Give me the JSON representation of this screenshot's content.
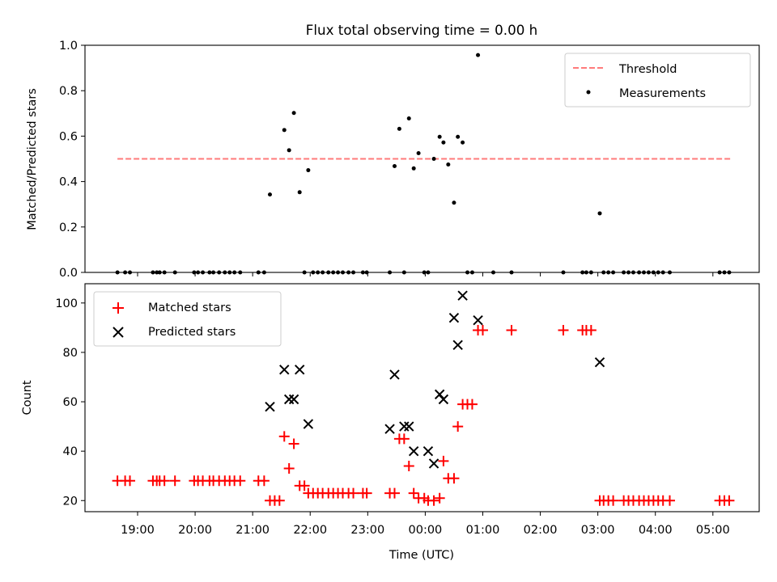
{
  "chart_data": [
    {
      "type": "scatter",
      "title": "Flux total observing time = 0.00 h",
      "xlabel": "",
      "ylabel": "Matched/Predicted stars",
      "ylim": [
        0,
        1
      ],
      "yticks": [
        "0.0",
        "0.2",
        "0.4",
        "0.6",
        "0.8",
        "1.0"
      ],
      "grid": false,
      "legend_position": "top-right",
      "threshold": {
        "name": "Threshold",
        "value": 0.5,
        "x_start": "18:39",
        "x_end": "05:18",
        "color": "#ff7b7b"
      },
      "series": [
        {
          "name": "Measurements",
          "color": "#000000",
          "points": [
            {
              "x": "18:39",
              "y": 0
            },
            {
              "x": "18:47",
              "y": 0
            },
            {
              "x": "18:52",
              "y": 0
            },
            {
              "x": "19:16",
              "y": 0
            },
            {
              "x": "19:20",
              "y": 0
            },
            {
              "x": "19:23",
              "y": 0
            },
            {
              "x": "19:28",
              "y": 0
            },
            {
              "x": "19:39",
              "y": 0
            },
            {
              "x": "19:59",
              "y": 0
            },
            {
              "x": "20:03",
              "y": 0
            },
            {
              "x": "20:08",
              "y": 0
            },
            {
              "x": "20:15",
              "y": 0
            },
            {
              "x": "20:19",
              "y": 0
            },
            {
              "x": "20:25",
              "y": 0
            },
            {
              "x": "20:31",
              "y": 0
            },
            {
              "x": "20:36",
              "y": 0
            },
            {
              "x": "20:41",
              "y": 0
            },
            {
              "x": "20:47",
              "y": 0
            },
            {
              "x": "21:06",
              "y": 0
            },
            {
              "x": "21:12",
              "y": 0
            },
            {
              "x": "21:18",
              "y": 0.343
            },
            {
              "x": "21:33",
              "y": 0.627
            },
            {
              "x": "21:38",
              "y": 0.538
            },
            {
              "x": "21:43",
              "y": 0.702
            },
            {
              "x": "21:49",
              "y": 0.353
            },
            {
              "x": "21:54",
              "y": 0
            },
            {
              "x": "21:58",
              "y": 0.45
            },
            {
              "x": "22:03",
              "y": 0
            },
            {
              "x": "22:08",
              "y": 0
            },
            {
              "x": "22:13",
              "y": 0
            },
            {
              "x": "22:19",
              "y": 0
            },
            {
              "x": "22:24",
              "y": 0
            },
            {
              "x": "22:29",
              "y": 0
            },
            {
              "x": "22:34",
              "y": 0
            },
            {
              "x": "22:40",
              "y": 0
            },
            {
              "x": "22:45",
              "y": 0
            },
            {
              "x": "22:55",
              "y": 0
            },
            {
              "x": "22:59",
              "y": 0
            },
            {
              "x": "23:23",
              "y": 0
            },
            {
              "x": "23:28",
              "y": 0.468
            },
            {
              "x": "23:33",
              "y": 0.632
            },
            {
              "x": "23:38",
              "y": 0
            },
            {
              "x": "23:43",
              "y": 0.678
            },
            {
              "x": "23:48",
              "y": 0.458
            },
            {
              "x": "23:53",
              "y": 0.525
            },
            {
              "x": "23:59",
              "y": 0
            },
            {
              "x": "00:03",
              "y": 0
            },
            {
              "x": "00:09",
              "y": 0.5
            },
            {
              "x": "00:15",
              "y": 0.597
            },
            {
              "x": "00:19",
              "y": 0.572
            },
            {
              "x": "00:24",
              "y": 0.475
            },
            {
              "x": "00:30",
              "y": 0.307
            },
            {
              "x": "00:34",
              "y": 0.597
            },
            {
              "x": "00:39",
              "y": 0.572
            },
            {
              "x": "00:44",
              "y": 0
            },
            {
              "x": "00:49",
              "y": 0
            },
            {
              "x": "00:55",
              "y": 0.957
            },
            {
              "x": "01:11",
              "y": 0
            },
            {
              "x": "01:30",
              "y": 0
            },
            {
              "x": "02:24",
              "y": 0
            },
            {
              "x": "02:44",
              "y": 0
            },
            {
              "x": "02:48",
              "y": 0
            },
            {
              "x": "02:53",
              "y": 0
            },
            {
              "x": "03:02",
              "y": 0.26
            },
            {
              "x": "03:06",
              "y": 0
            },
            {
              "x": "03:11",
              "y": 0
            },
            {
              "x": "03:16",
              "y": 0
            },
            {
              "x": "03:27",
              "y": 0
            },
            {
              "x": "03:32",
              "y": 0
            },
            {
              "x": "03:37",
              "y": 0
            },
            {
              "x": "03:43",
              "y": 0
            },
            {
              "x": "03:48",
              "y": 0
            },
            {
              "x": "03:53",
              "y": 0
            },
            {
              "x": "03:58",
              "y": 0
            },
            {
              "x": "04:03",
              "y": 0
            },
            {
              "x": "04:08",
              "y": 0
            },
            {
              "x": "04:15",
              "y": 0
            },
            {
              "x": "05:07",
              "y": 0
            },
            {
              "x": "05:12",
              "y": 0
            },
            {
              "x": "05:17",
              "y": 0
            }
          ]
        }
      ]
    },
    {
      "type": "scatter",
      "title": "",
      "xlabel": "Time (UTC)",
      "ylabel": "Count",
      "ylim": [
        15.5,
        107.8
      ],
      "yticks": [
        "20",
        "40",
        "60",
        "80",
        "100"
      ],
      "xticks": [
        "19:00",
        "20:00",
        "21:00",
        "22:00",
        "23:00",
        "00:00",
        "01:00",
        "02:00",
        "03:00",
        "04:00",
        "05:00"
      ],
      "grid": false,
      "legend_position": "top-left",
      "series": [
        {
          "name": "Matched stars",
          "marker": "plus",
          "color": "#ff0000",
          "points": [
            {
              "x": "18:39",
              "y": 28
            },
            {
              "x": "18:47",
              "y": 28
            },
            {
              "x": "18:52",
              "y": 28
            },
            {
              "x": "19:16",
              "y": 28
            },
            {
              "x": "19:20",
              "y": 28
            },
            {
              "x": "19:23",
              "y": 28
            },
            {
              "x": "19:28",
              "y": 28
            },
            {
              "x": "19:39",
              "y": 28
            },
            {
              "x": "19:59",
              "y": 28
            },
            {
              "x": "20:03",
              "y": 28
            },
            {
              "x": "20:08",
              "y": 28
            },
            {
              "x": "20:15",
              "y": 28
            },
            {
              "x": "20:19",
              "y": 28
            },
            {
              "x": "20:25",
              "y": 28
            },
            {
              "x": "20:31",
              "y": 28
            },
            {
              "x": "20:36",
              "y": 28
            },
            {
              "x": "20:41",
              "y": 28
            },
            {
              "x": "20:47",
              "y": 28
            },
            {
              "x": "21:06",
              "y": 28
            },
            {
              "x": "21:12",
              "y": 28
            },
            {
              "x": "21:18",
              "y": 20
            },
            {
              "x": "21:23",
              "y": 20
            },
            {
              "x": "21:28",
              "y": 20
            },
            {
              "x": "21:33",
              "y": 46
            },
            {
              "x": "21:38",
              "y": 33
            },
            {
              "x": "21:43",
              "y": 43
            },
            {
              "x": "21:49",
              "y": 26
            },
            {
              "x": "21:54",
              "y": 26
            },
            {
              "x": "21:58",
              "y": 23
            },
            {
              "x": "22:03",
              "y": 23
            },
            {
              "x": "22:08",
              "y": 23
            },
            {
              "x": "22:13",
              "y": 23
            },
            {
              "x": "22:19",
              "y": 23
            },
            {
              "x": "22:24",
              "y": 23
            },
            {
              "x": "22:29",
              "y": 23
            },
            {
              "x": "22:34",
              "y": 23
            },
            {
              "x": "22:40",
              "y": 23
            },
            {
              "x": "22:45",
              "y": 23
            },
            {
              "x": "22:55",
              "y": 23
            },
            {
              "x": "22:59",
              "y": 23
            },
            {
              "x": "23:23",
              "y": 23
            },
            {
              "x": "23:28",
              "y": 23
            },
            {
              "x": "23:33",
              "y": 45
            },
            {
              "x": "23:38",
              "y": 45
            },
            {
              "x": "23:43",
              "y": 34
            },
            {
              "x": "23:48",
              "y": 23
            },
            {
              "x": "23:53",
              "y": 21
            },
            {
              "x": "23:59",
              "y": 21
            },
            {
              "x": "00:03",
              "y": 20
            },
            {
              "x": "00:09",
              "y": 20
            },
            {
              "x": "00:15",
              "y": 21
            },
            {
              "x": "00:19",
              "y": 36
            },
            {
              "x": "00:24",
              "y": 29
            },
            {
              "x": "00:30",
              "y": 29
            },
            {
              "x": "00:34",
              "y": 50
            },
            {
              "x": "00:39",
              "y": 59
            },
            {
              "x": "00:44",
              "y": 59
            },
            {
              "x": "00:49",
              "y": 59
            },
            {
              "x": "00:55",
              "y": 89
            },
            {
              "x": "01:00",
              "y": 89
            },
            {
              "x": "01:30",
              "y": 89
            },
            {
              "x": "02:24",
              "y": 89
            },
            {
              "x": "02:44",
              "y": 89
            },
            {
              "x": "02:48",
              "y": 89
            },
            {
              "x": "02:53",
              "y": 89
            },
            {
              "x": "03:02",
              "y": 20
            },
            {
              "x": "03:06",
              "y": 20
            },
            {
              "x": "03:11",
              "y": 20
            },
            {
              "x": "03:16",
              "y": 20
            },
            {
              "x": "03:27",
              "y": 20
            },
            {
              "x": "03:32",
              "y": 20
            },
            {
              "x": "03:37",
              "y": 20
            },
            {
              "x": "03:43",
              "y": 20
            },
            {
              "x": "03:48",
              "y": 20
            },
            {
              "x": "03:53",
              "y": 20
            },
            {
              "x": "03:58",
              "y": 20
            },
            {
              "x": "04:03",
              "y": 20
            },
            {
              "x": "04:08",
              "y": 20
            },
            {
              "x": "04:15",
              "y": 20
            },
            {
              "x": "05:07",
              "y": 20
            },
            {
              "x": "05:12",
              "y": 20
            },
            {
              "x": "05:17",
              "y": 20
            }
          ]
        },
        {
          "name": "Predicted stars",
          "marker": "x",
          "color": "#000000",
          "points": [
            {
              "x": "21:18",
              "y": 58
            },
            {
              "x": "21:33",
              "y": 73
            },
            {
              "x": "21:38",
              "y": 61
            },
            {
              "x": "21:43",
              "y": 61
            },
            {
              "x": "21:49",
              "y": 73
            },
            {
              "x": "21:58",
              "y": 51
            },
            {
              "x": "23:23",
              "y": 49
            },
            {
              "x": "23:28",
              "y": 71
            },
            {
              "x": "23:38",
              "y": 50
            },
            {
              "x": "23:43",
              "y": 50
            },
            {
              "x": "23:48",
              "y": 40
            },
            {
              "x": "00:03",
              "y": 40
            },
            {
              "x": "00:09",
              "y": 35
            },
            {
              "x": "00:15",
              "y": 63
            },
            {
              "x": "00:19",
              "y": 61
            },
            {
              "x": "00:30",
              "y": 94
            },
            {
              "x": "00:34",
              "y": 83
            },
            {
              "x": "00:39",
              "y": 103
            },
            {
              "x": "00:55",
              "y": 93
            },
            {
              "x": "03:02",
              "y": 76
            }
          ]
        }
      ]
    }
  ]
}
